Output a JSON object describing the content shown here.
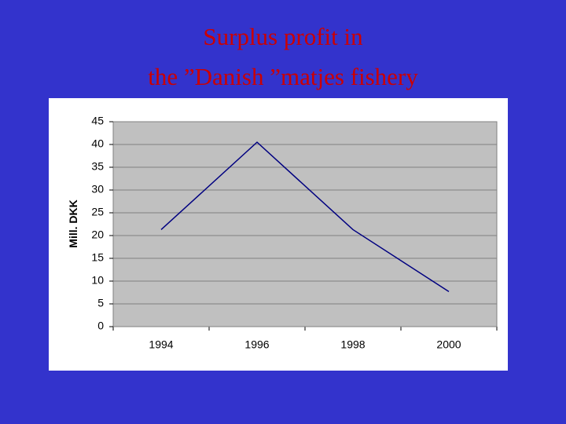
{
  "chart_data": {
    "type": "line",
    "title": [
      "Surplus profit in",
      "the ”Danish ”matjes fishery"
    ],
    "y_label": "Mill. DKK",
    "categories": [
      "1994",
      "1996",
      "1998",
      "2000"
    ],
    "series": [
      {
        "name": "Surplus profit",
        "color": "#000080",
        "values": [
          21.3,
          40.5,
          21.3,
          7.7
        ]
      }
    ],
    "ylim": [
      0,
      45
    ],
    "yticks": [
      0,
      5,
      10,
      15,
      20,
      25,
      30,
      35,
      40,
      45
    ],
    "grid": true
  }
}
